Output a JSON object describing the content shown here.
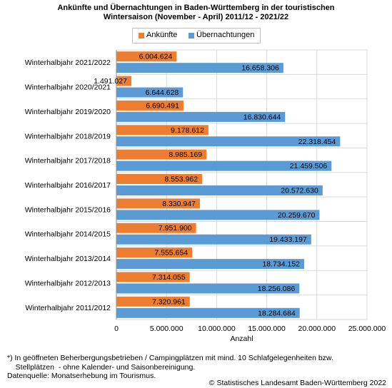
{
  "title_line1": "Ankünfte und Übernachtungen in Baden-Württemberg in der touristischen",
  "title_line2": "Wintersaison (November - April) 2011/12 - 2021/22",
  "footnote_line1": "*) In geöffneten Beherbergungsbetrieben / Campingplätzen mit mind. 10 Schlafgelegenheiten bzw.",
  "footnote_line2": "    Stellplätzen  - ohne Kalender- und Saisonbereinigung.",
  "footnote_line3": "Datenquelle: Monatserhebung im Tourismus.",
  "copyright": "© Statistisches Landesamt Baden-Württemberg 2022",
  "chart_data": {
    "type": "bar",
    "orientation": "horizontal",
    "categories": [
      "Winterhalbjahr 2021/2022",
      "Winterhalbjahr 2020/2021",
      "Winterhalbjahr 2019/2020",
      "Winterhalbjahr 2018/2019",
      "Winterhalbjahr 2017/2018",
      "Winterhalbjahr 2016/2017",
      "Winterhalbjahr 2015/2016",
      "Winterhalbjahr 2014/2015",
      "Winterhalbjahr 2013/2014",
      "Winterhalbjahr 2012/2013",
      "Winterhalbjahr 2011/2012"
    ],
    "series": [
      {
        "name": "Ankünfte",
        "color": "#ed7d31",
        "values": [
          6004624,
          1491027,
          6690491,
          9178612,
          8985169,
          8553962,
          8330947,
          7951900,
          7555654,
          7314055,
          7320961
        ],
        "labels": [
          "6.004.624",
          "1.491.027",
          "6.690.491",
          "9.178.612",
          "8.985.169",
          "8.553.962",
          "8.330.947",
          "7.951.900",
          "7.555.654",
          "7.314.055",
          "7.320.961"
        ]
      },
      {
        "name": "Übernachtungen",
        "color": "#5b9bd5",
        "values": [
          16658306,
          6644628,
          16830644,
          22318454,
          21459506,
          20572630,
          20259670,
          19433197,
          18734152,
          18256086,
          18284684
        ],
        "labels": [
          "16.658.306",
          "6.644.628",
          "16.830.644",
          "22.318.454",
          "21.459.506",
          "20.572.630",
          "20.259.670",
          "19.433.197",
          "18.734.152",
          "18.256.086",
          "18.284.684"
        ]
      }
    ],
    "xlabel": "Anzahl",
    "xlim": [
      0,
      25000000
    ],
    "xticks": [
      0,
      5000000,
      10000000,
      15000000,
      20000000,
      25000000
    ],
    "xtick_labels": [
      "0",
      "5.000.000",
      "10.000.000",
      "15.000.000",
      "20.000.000",
      "25.000.000"
    ],
    "grid": true,
    "legend_position": "top"
  }
}
